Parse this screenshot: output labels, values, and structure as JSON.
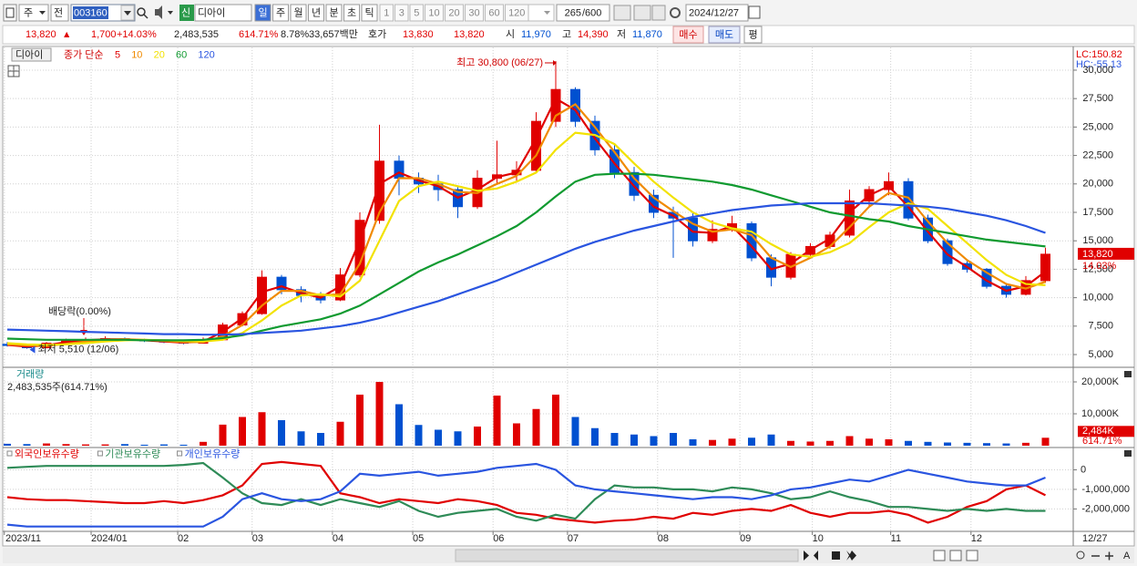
{
  "toolbar": {
    "period_prefix": "주",
    "prev": "전",
    "code": "003160",
    "badge": "신",
    "name": "디아이",
    "units": [
      "일",
      "주",
      "월",
      "년",
      "분",
      "초",
      "틱"
    ],
    "intervals": [
      "1",
      "3",
      "5",
      "10",
      "20",
      "30",
      "60",
      "120"
    ],
    "count": "265",
    "max": "/600",
    "date": "2024/12/27"
  },
  "quote": {
    "price": "13,820",
    "arrow": "▲",
    "change": "1,700",
    "change_pct": "+14.03%",
    "volume": "2,483,535",
    "volume_ratio": "614.71%",
    "turnover": "8.78%",
    "amount": "33,657백만",
    "bid_ask_label": "호가",
    "ask": "13,830",
    "bid": "13,820",
    "open_label": "시",
    "open": "11,970",
    "high_label": "고",
    "high": "14,390",
    "low_label": "저",
    "low": "11,870",
    "buy": "매수",
    "sell": "매도",
    "avg": "평"
  },
  "bottom_bar": {
    "font_button": "A"
  },
  "chart_data": [
    {
      "type": "candlestick",
      "stock": "디아이",
      "legend_label": "종가 단순",
      "up_color": "#e00000",
      "down_color": "#0050d0",
      "candles": [
        [
          5900,
          6100,
          5700,
          5800
        ],
        [
          5800,
          5900,
          5510,
          5600
        ],
        [
          5600,
          6100,
          5550,
          6000
        ],
        [
          6000,
          6400,
          5900,
          6200
        ],
        [
          6200,
          6500,
          6100,
          6300
        ],
        [
          6300,
          6600,
          6200,
          6400
        ],
        [
          6400,
          6500,
          6200,
          6300
        ],
        [
          6300,
          6400,
          6100,
          6200
        ],
        [
          6200,
          6300,
          6000,
          6100
        ],
        [
          6100,
          6200,
          5900,
          6000
        ],
        [
          6000,
          6500,
          5950,
          6300
        ],
        [
          6300,
          7800,
          6250,
          7600
        ],
        [
          7600,
          8800,
          7500,
          8600
        ],
        [
          8600,
          12400,
          8500,
          11800
        ],
        [
          11800,
          12000,
          10300,
          10700
        ],
        [
          10700,
          11000,
          9600,
          10200
        ],
        [
          10200,
          10500,
          9500,
          9800
        ],
        [
          9800,
          12600,
          9700,
          12000
        ],
        [
          12000,
          17500,
          11800,
          16800
        ],
        [
          16800,
          25200,
          16500,
          22000
        ],
        [
          22000,
          22500,
          19000,
          20500
        ],
        [
          20500,
          21000,
          19200,
          20000
        ],
        [
          20000,
          20800,
          18500,
          19500
        ],
        [
          19500,
          19800,
          17000,
          18000
        ],
        [
          18000,
          21200,
          17800,
          20500
        ],
        [
          20500,
          23800,
          20000,
          20800
        ],
        [
          20800,
          22000,
          20200,
          21200
        ],
        [
          21200,
          26300,
          21000,
          25500
        ],
        [
          25500,
          30800,
          25000,
          28300
        ],
        [
          28300,
          28500,
          25000,
          25500
        ],
        [
          25500,
          26000,
          22500,
          23000
        ],
        [
          23000,
          23500,
          20500,
          21000
        ],
        [
          21000,
          21500,
          18500,
          19000
        ],
        [
          19000,
          19500,
          17000,
          17500
        ],
        [
          17500,
          18000,
          13500,
          17000
        ],
        [
          17000,
          17500,
          14500,
          15000
        ],
        [
          15000,
          16800,
          14800,
          16000
        ],
        [
          16000,
          17200,
          15800,
          16500
        ],
        [
          16500,
          16700,
          13200,
          13500
        ],
        [
          13500,
          13800,
          11000,
          11800
        ],
        [
          11800,
          14000,
          11600,
          13800
        ],
        [
          13800,
          14800,
          13600,
          14500
        ],
        [
          14500,
          15800,
          14300,
          15500
        ],
        [
          15500,
          19500,
          15300,
          18500
        ],
        [
          18500,
          19800,
          18000,
          19500
        ],
        [
          19500,
          21000,
          19000,
          20200
        ],
        [
          20200,
          20500,
          16800,
          17000
        ],
        [
          17000,
          17300,
          14800,
          15000
        ],
        [
          15000,
          15200,
          12800,
          13000
        ],
        [
          13000,
          13200,
          12200,
          12500
        ],
        [
          12500,
          12600,
          10800,
          11000
        ],
        [
          11000,
          11200,
          10000,
          10300
        ],
        [
          10300,
          11900,
          10200,
          11500
        ],
        [
          11500,
          14390,
          11300,
          13820
        ]
      ],
      "series": [
        {
          "name": "5",
          "color": "#e00000",
          "values": [
            5850,
            5700,
            5800,
            6100,
            6250,
            6350,
            6350,
            6250,
            6150,
            6050,
            6150,
            7000,
            8200,
            10500,
            11000,
            10400,
            10000,
            11000,
            15000,
            20000,
            21000,
            20300,
            19800,
            18800,
            19500,
            20600,
            21000,
            24000,
            27500,
            26500,
            24000,
            21800,
            19800,
            18000,
            17200,
            15800,
            15700,
            16300,
            14500,
            12500,
            13000,
            14200,
            15200,
            17500,
            19000,
            19800,
            18000,
            15800,
            13800,
            12700,
            11500,
            10600,
            11000,
            12300
          ]
        },
        {
          "name": "10",
          "color": "#f08a00",
          "values": [
            5900,
            5800,
            5750,
            5950,
            6150,
            6300,
            6350,
            6300,
            6200,
            6100,
            6100,
            6600,
            7600,
            9300,
            10600,
            10600,
            10200,
            10300,
            13000,
            17500,
            20500,
            20500,
            20000,
            19300,
            19200,
            20000,
            20700,
            22500,
            26000,
            27000,
            25000,
            22800,
            20500,
            18800,
            17600,
            16500,
            15800,
            16000,
            15500,
            13500,
            12700,
            13500,
            14500,
            16200,
            18000,
            19200,
            18800,
            16700,
            14800,
            13300,
            12200,
            11200,
            10800,
            11400
          ]
        },
        {
          "name": "20",
          "color": "#f2e200",
          "values": [
            6000,
            5900,
            5850,
            5900,
            6000,
            6150,
            6250,
            6300,
            6250,
            6200,
            6150,
            6300,
            6900,
            8000,
            9300,
            10200,
            10300,
            10100,
            11500,
            15000,
            18500,
            19800,
            20200,
            19800,
            19400,
            19600,
            20200,
            21000,
            23000,
            24500,
            24300,
            23500,
            21800,
            20200,
            18800,
            17500,
            16600,
            16100,
            15800,
            14700,
            13800,
            13600,
            14000,
            14800,
            16200,
            17500,
            18300,
            17800,
            16300,
            14800,
            13300,
            12000,
            11200,
            11100
          ]
        },
        {
          "name": "60",
          "color": "#109a30",
          "values": [
            6400,
            6350,
            6300,
            6300,
            6300,
            6300,
            6300,
            6250,
            6250,
            6250,
            6300,
            6450,
            6700,
            7100,
            7500,
            7800,
            8100,
            8600,
            9300,
            10300,
            11300,
            12300,
            13100,
            13800,
            14600,
            15400,
            16300,
            17500,
            18900,
            20200,
            20800,
            20900,
            20900,
            20800,
            20600,
            20400,
            20200,
            19900,
            19500,
            19000,
            18500,
            18000,
            17500,
            17200,
            16900,
            16700,
            16300,
            16000,
            15700,
            15400,
            15100,
            14900,
            14700,
            14500
          ]
        },
        {
          "name": "120",
          "color": "#2a55e0",
          "values": [
            7200,
            7150,
            7100,
            7050,
            7000,
            6950,
            6900,
            6850,
            6800,
            6800,
            6750,
            6750,
            6800,
            6900,
            7000,
            7100,
            7300,
            7500,
            7800,
            8200,
            8700,
            9200,
            9700,
            10300,
            10900,
            11500,
            12200,
            12900,
            13600,
            14300,
            14900,
            15400,
            15900,
            16300,
            16700,
            17100,
            17400,
            17700,
            17900,
            18100,
            18200,
            18300,
            18300,
            18300,
            18300,
            18200,
            18100,
            18000,
            17800,
            17500,
            17200,
            16800,
            16300,
            15700
          ]
        }
      ],
      "ylim": [
        3960,
        32000
      ],
      "yticks": [
        {
          "value": 5000,
          "label": "5,000"
        },
        {
          "value": 7500,
          "label": "7,500"
        },
        {
          "value": 10000,
          "label": "10,000"
        },
        {
          "value": 12500,
          "label": "12,500"
        },
        {
          "value": 15000,
          "label": "15,000"
        },
        {
          "value": 17500,
          "label": "17,500"
        },
        {
          "value": 20000,
          "label": "20,000"
        },
        {
          "value": 22500,
          "label": "22,500"
        },
        {
          "value": 25000,
          "label": "25,000"
        },
        {
          "value": 27500,
          "label": "27,500"
        },
        {
          "value": 30000,
          "label": "30,000"
        }
      ],
      "annotations": {
        "high": "최고 30,800 (06/27)",
        "low": "최저 5,510 (12/06)",
        "ex_dividend": "배당락(0.00%)"
      },
      "lc": "LC:150.82",
      "hc": "HC:-55.13",
      "last_label": "13,820",
      "change_label": "14.03%"
    },
    {
      "type": "bar",
      "title": "거래량",
      "subtitle": "2,483,535주(614.71%)",
      "values": [
        600,
        500,
        700,
        500,
        400,
        400,
        500,
        300,
        400,
        300,
        1200,
        6600,
        9000,
        10500,
        8000,
        4500,
        4000,
        7500,
        16000,
        20000,
        13000,
        6500,
        5000,
        4500,
        6000,
        15700,
        7000,
        11500,
        16000,
        9000,
        5500,
        4000,
        3500,
        3000,
        4000,
        2000,
        1800,
        2200,
        2500,
        3500,
        1500,
        1300,
        1500,
        3000,
        2200,
        2000,
        1500,
        1200,
        1000,
        900,
        800,
        700,
        900,
        2484
      ],
      "ylim": [
        0,
        24000
      ],
      "yticks": [
        {
          "value": 10000,
          "label": "10,000K"
        },
        {
          "value": 20000,
          "label": "20,000K"
        }
      ],
      "last_label": "2,484K",
      "ratio_label": "614.71%"
    },
    {
      "type": "line",
      "series": [
        {
          "name": "외국인보유수량",
          "color": "#e00000",
          "values": [
            -1400000,
            -1500000,
            -1550000,
            -1550000,
            -1600000,
            -1650000,
            -1700000,
            -1700000,
            -1600000,
            -1700000,
            -1550000,
            -1300000,
            -800000,
            300000,
            400000,
            300000,
            200000,
            -1200000,
            -1400000,
            -1700000,
            -1500000,
            -1600000,
            -1700000,
            -1500000,
            -1600000,
            -1800000,
            -2200000,
            -2300000,
            -2500000,
            -2600000,
            -2700000,
            -2600000,
            -2550000,
            -2400000,
            -2500000,
            -2200000,
            -2300000,
            -2100000,
            -2000000,
            -2100000,
            -1800000,
            -2200000,
            -2400000,
            -2200000,
            -2200000,
            -2100000,
            -2300000,
            -2700000,
            -2400000,
            -1900000,
            -1600000,
            -1000000,
            -800000,
            -1300000
          ]
        },
        {
          "name": "기관보유수량",
          "color": "#2e8b57",
          "values": [
            100000,
            150000,
            200000,
            200000,
            200000,
            200000,
            200000,
            200000,
            200000,
            250000,
            350000,
            -400000,
            -1200000,
            -1700000,
            -1800000,
            -1500000,
            -1800000,
            -1500000,
            -1700000,
            -1900000,
            -1600000,
            -2100000,
            -2400000,
            -2200000,
            -2100000,
            -2000000,
            -2400000,
            -2600000,
            -2300000,
            -2500000,
            -1500000,
            -800000,
            -900000,
            -900000,
            -1000000,
            -1000000,
            -1100000,
            -900000,
            -1000000,
            -1200000,
            -1500000,
            -1400000,
            -1100000,
            -1400000,
            -1600000,
            -1900000,
            -1900000,
            -2000000,
            -2100000,
            -2000000,
            -2100000,
            -2000000,
            -2100000,
            -2100000
          ]
        },
        {
          "name": "개인보유수량",
          "color": "#2a55e0",
          "values": [
            -2800000,
            -2900000,
            -2900000,
            -2900000,
            -2900000,
            -2900000,
            -2900000,
            -2900000,
            -2900000,
            -2900000,
            -2900000,
            -2400000,
            -1500000,
            -1200000,
            -1500000,
            -1600000,
            -1500000,
            -1100000,
            -200000,
            -300000,
            -200000,
            -100000,
            -300000,
            -200000,
            -100000,
            100000,
            200000,
            300000,
            0,
            -800000,
            -1000000,
            -1100000,
            -1200000,
            -1300000,
            -1400000,
            -1500000,
            -1400000,
            -1400000,
            -1500000,
            -1300000,
            -1000000,
            -900000,
            -700000,
            -500000,
            -600000,
            -300000,
            0,
            -200000,
            -400000,
            -600000,
            -700000,
            -800000,
            -800000,
            -400000
          ]
        }
      ],
      "ylim": [
        -3100000,
        1000000
      ],
      "yticks": [
        0,
        {
          "value": -1000000,
          "label": "-1,000,000"
        },
        {
          "value": -2000000,
          "label": "-2,000,000"
        }
      ],
      "xticks": [
        {
          "value": -0.15,
          "label": "2023/11"
        },
        {
          "value": 4.28,
          "label": "2024/01"
        },
        {
          "value": 8.7,
          "label": "02"
        },
        {
          "value": 12.5,
          "label": "03"
        },
        {
          "value": 16.6,
          "label": "04"
        },
        {
          "value": 20.7,
          "label": "05"
        },
        {
          "value": 24.8,
          "label": "06"
        },
        {
          "value": 28.6,
          "label": "07"
        },
        {
          "value": 33.2,
          "label": "08"
        },
        {
          "value": 37.4,
          "label": "09"
        },
        {
          "value": 41.1,
          "label": "10"
        },
        {
          "value": 45.1,
          "label": "11"
        },
        {
          "value": 49.2,
          "label": "12"
        }
      ],
      "x_end_label": "12/27"
    }
  ]
}
